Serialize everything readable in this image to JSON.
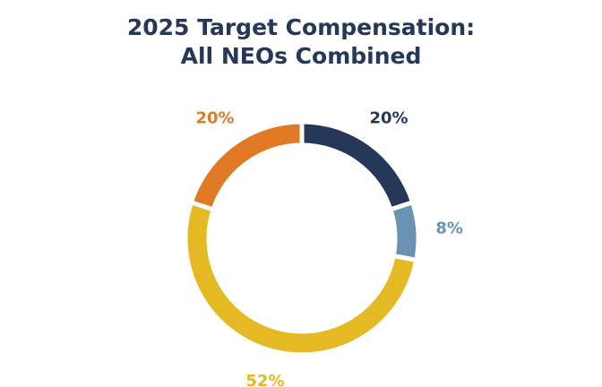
{
  "chart_data": {
    "type": "donut",
    "title": [
      "2025 Target Compensation:",
      "All NEOs Combined"
    ],
    "values": [
      20,
      8,
      52,
      20
    ],
    "value_labels": [
      "20%",
      "8%",
      "52%",
      "20%"
    ],
    "colors": [
      "#253858",
      "#6a93b3",
      "#e5b923",
      "#e07a25"
    ]
  }
}
